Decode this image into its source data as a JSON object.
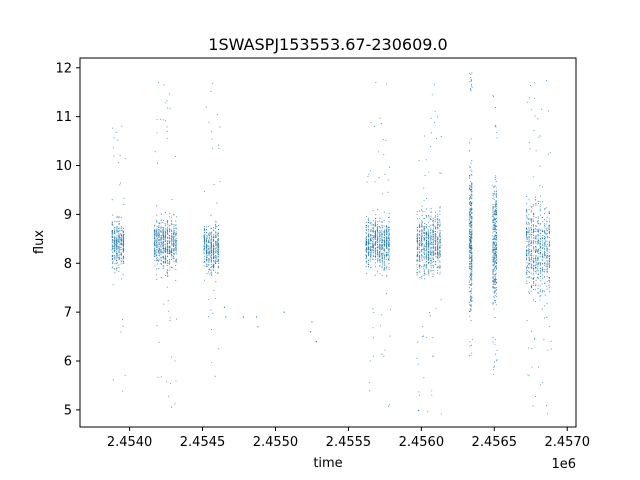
{
  "chart_data": {
    "type": "scatter",
    "title": "1SWASPJ153553.67-230609.0",
    "xlabel": "time",
    "ylabel": "flux",
    "x_offset_label": "1e6",
    "xlim": [
      2.45366,
      2.45706
    ],
    "ylim": [
      4.65,
      12.2
    ],
    "x_ticks": [
      2.454,
      2.4545,
      2.455,
      2.4555,
      2.456,
      2.4565,
      2.457
    ],
    "x_tick_labels": [
      "2.4540",
      "2.4545",
      "2.4550",
      "2.4555",
      "2.4560",
      "2.4565",
      "2.4570"
    ],
    "y_ticks": [
      5,
      6,
      7,
      8,
      9,
      10,
      11,
      12
    ],
    "y_tick_labels": [
      "5",
      "6",
      "7",
      "8",
      "9",
      "10",
      "11",
      "12"
    ],
    "grid": false,
    "point_color": "#1f77b4",
    "series": [
      {
        "observing_seasons": [
          {
            "x_start": 2.45388,
            "x_end": 2.45397,
            "flux_center": 8.4,
            "flux_core_low": 7.6,
            "flux_core_high": 9.2,
            "flux_min": 5.0,
            "flux_max": 11.2
          },
          {
            "x_start": 2.45417,
            "x_end": 2.45433,
            "flux_center": 8.4,
            "flux_core_low": 7.5,
            "flux_core_high": 9.3,
            "flux_min": 5.0,
            "flux_max": 11.8
          },
          {
            "x_start": 2.45451,
            "x_end": 2.45462,
            "flux_center": 8.3,
            "flux_core_low": 7.5,
            "flux_core_high": 9.1,
            "flux_min": 5.6,
            "flux_max": 11.7
          },
          {
            "x_start": 2.45562,
            "x_end": 2.45579,
            "flux_center": 8.4,
            "flux_core_low": 7.6,
            "flux_core_high": 9.3,
            "flux_min": 5.0,
            "flux_max": 11.8
          },
          {
            "x_start": 2.45597,
            "x_end": 2.45614,
            "flux_center": 8.4,
            "flux_core_low": 7.3,
            "flux_core_high": 9.5,
            "flux_min": 4.9,
            "flux_max": 11.8
          },
          {
            "x_start": 2.45633,
            "x_end": 2.45635,
            "flux_center": 8.5,
            "flux_core_low": 6.5,
            "flux_core_high": 11.5,
            "flux_min": 6.1,
            "flux_max": 11.9
          },
          {
            "x_start": 2.45649,
            "x_end": 2.45652,
            "flux_center": 8.4,
            "flux_core_low": 6.8,
            "flux_core_high": 10.5,
            "flux_min": 5.6,
            "flux_max": 11.8
          },
          {
            "x_start": 2.45672,
            "x_end": 2.45689,
            "flux_center": 8.3,
            "flux_core_low": 6.8,
            "flux_core_high": 10.0,
            "flux_min": 4.9,
            "flux_max": 11.8
          }
        ],
        "isolated_points": [
          [
            2.45465,
            7.1
          ],
          [
            2.45466,
            6.9
          ],
          [
            2.45478,
            6.9
          ],
          [
            2.45487,
            6.9
          ],
          [
            2.45488,
            6.7
          ],
          [
            2.45506,
            7.0
          ],
          [
            2.45524,
            6.6
          ],
          [
            2.45525,
            6.8
          ],
          [
            2.45528,
            6.4
          ],
          [
            2.45608,
            6.1
          ]
        ]
      }
    ]
  }
}
